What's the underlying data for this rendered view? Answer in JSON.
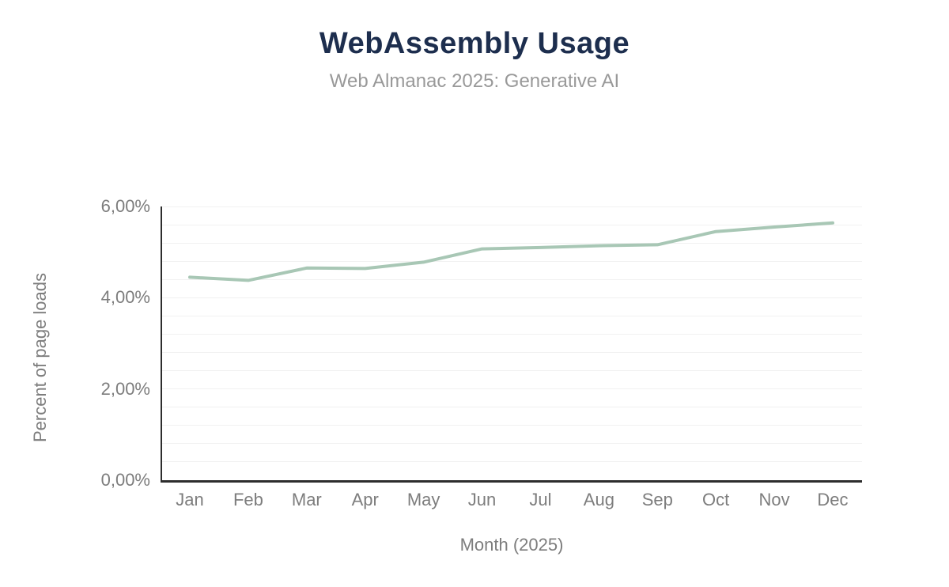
{
  "chart_data": {
    "type": "line",
    "title": "WebAssembly Usage",
    "subtitle": "Web Almanac 2025: Generative AI",
    "xlabel": "Month (2025)",
    "ylabel": "Percent of page loads",
    "categories": [
      "Jan",
      "Feb",
      "Mar",
      "Apr",
      "May",
      "Jun",
      "Jul",
      "Aug",
      "Sep",
      "Oct",
      "Nov",
      "Dec"
    ],
    "series": [
      {
        "name": "WebAssembly usage",
        "values": [
          4.45,
          4.38,
          4.65,
          4.64,
          4.78,
          5.07,
          5.1,
          5.14,
          5.16,
          5.45,
          5.55,
          5.64
        ]
      }
    ],
    "ylim": [
      0,
      6
    ],
    "ytick_values": [
      0,
      2,
      4,
      6
    ],
    "ytick_labels": [
      "0,00%",
      "2,00%",
      "4,00%",
      "6,00%"
    ],
    "grid_step": 0.4,
    "grid": "on",
    "legend_position": "none",
    "colors": {
      "line": "#a8c7b5",
      "title": "#1d2e4e",
      "subtitle": "#999999",
      "axis_text": "#7d7d7d",
      "axis_line": "#2d2d2d",
      "gridline": "#f1f1f1",
      "background": "#ffffff"
    }
  }
}
